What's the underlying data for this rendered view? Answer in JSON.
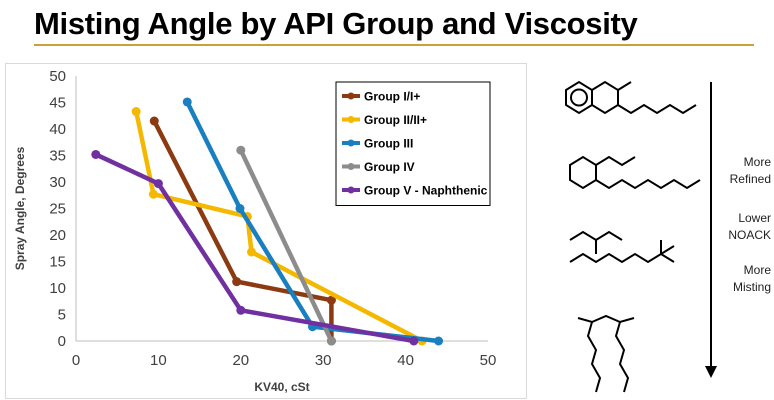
{
  "page": {
    "title": "Misting Angle by API Group and Viscosity",
    "side_labels": {
      "more": "More",
      "refined": "Refined",
      "lower": "Lower",
      "noack": "NOACK",
      "more2": "More",
      "misting": "Misting"
    }
  },
  "colors": {
    "accent_rule": "#c9a23a",
    "group_1": "#8b3a12",
    "group_2": "#f5b800",
    "group_3": "#1a7fc1",
    "group_4": "#8c8c8c",
    "group_5": "#7030a0"
  },
  "chart_data": {
    "type": "line",
    "title": "",
    "xlabel": "KV40, cSt",
    "ylabel": "Spray Angle, Degrees",
    "xlim": [
      0,
      50
    ],
    "ylim": [
      0,
      50
    ],
    "xticks": [
      0,
      10,
      20,
      30,
      40,
      50
    ],
    "yticks": [
      0,
      5,
      10,
      15,
      20,
      25,
      30,
      35,
      40,
      45,
      50
    ],
    "grid": false,
    "legend": "top-right",
    "series": [
      {
        "name": "Group I/I+",
        "color": "#8b3a12",
        "points": [
          [
            9.5,
            41.5
          ],
          [
            19.5,
            11.2
          ],
          [
            31.0,
            7.7
          ],
          [
            31.0,
            0.0
          ]
        ]
      },
      {
        "name": "Group II/II+",
        "color": "#f5b800",
        "points": [
          [
            7.3,
            43.3
          ],
          [
            9.4,
            27.7
          ],
          [
            20.8,
            23.5
          ],
          [
            21.3,
            16.8
          ],
          [
            42.0,
            0.0
          ]
        ]
      },
      {
        "name": "Group III",
        "color": "#1a7fc1",
        "points": [
          [
            13.5,
            45.1
          ],
          [
            19.9,
            25.0
          ],
          [
            28.7,
            2.7
          ],
          [
            44.0,
            0.0
          ]
        ]
      },
      {
        "name": "Group IV",
        "color": "#8c8c8c",
        "points": [
          [
            20.0,
            36.0
          ],
          [
            31.0,
            0.0
          ]
        ]
      },
      {
        "name": "Group V - Naphthenic",
        "color": "#7030a0",
        "points": [
          [
            2.4,
            35.2
          ],
          [
            10.0,
            29.7
          ],
          [
            20.0,
            5.8
          ],
          [
            41.0,
            0.0
          ]
        ]
      }
    ]
  }
}
